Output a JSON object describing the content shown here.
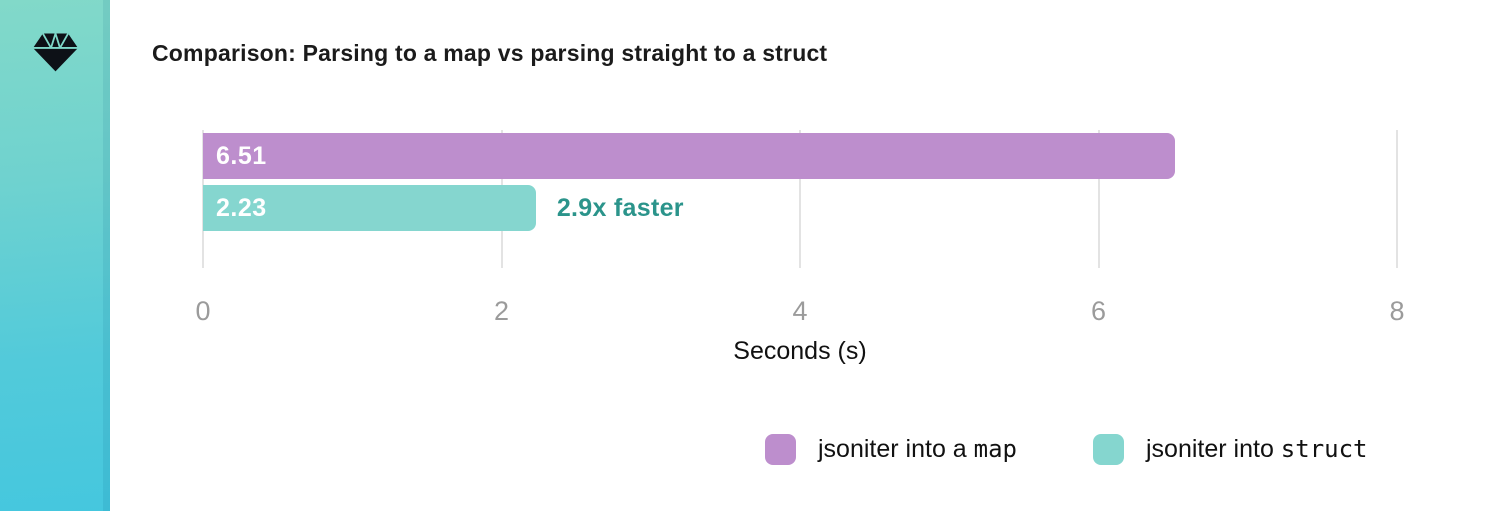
{
  "sidebar": {
    "logo_icon": "diamond-gem-icon",
    "gradient_top": "#82d9c9",
    "gradient_bottom": "#45c7de",
    "icon_color": "#0d1117"
  },
  "header": {
    "title": "Comparison: Parsing to a map vs parsing straight to a struct"
  },
  "chart_data": {
    "type": "bar",
    "orientation": "horizontal",
    "title": "Comparison: Parsing to a map vs parsing straight to a struct",
    "categories": [
      "jsoniter into a map",
      "jsoniter into struct"
    ],
    "values": [
      6.51,
      2.23
    ],
    "value_labels": [
      "6.51",
      "2.23"
    ],
    "annotation": "2.9x faster",
    "xlabel": "Seconds (s)",
    "x_ticks": [
      "0",
      "2",
      "4",
      "6",
      "8"
    ],
    "xlim": [
      0,
      8
    ],
    "grid": true,
    "legend_position": "bottom-right",
    "legend": [
      {
        "label_prefix": "jsoniter into a ",
        "label_code": "map",
        "color": "#bd8ecd"
      },
      {
        "label_prefix": "jsoniter into ",
        "label_code": "struct",
        "color": "#85d6cf"
      }
    ],
    "bar_colors": [
      "#bd8ecd",
      "#85d6cf"
    ],
    "annotation_color": "#2b948b",
    "gridline_color": "#e3e3e3",
    "tick_color": "#9b9b9b"
  }
}
